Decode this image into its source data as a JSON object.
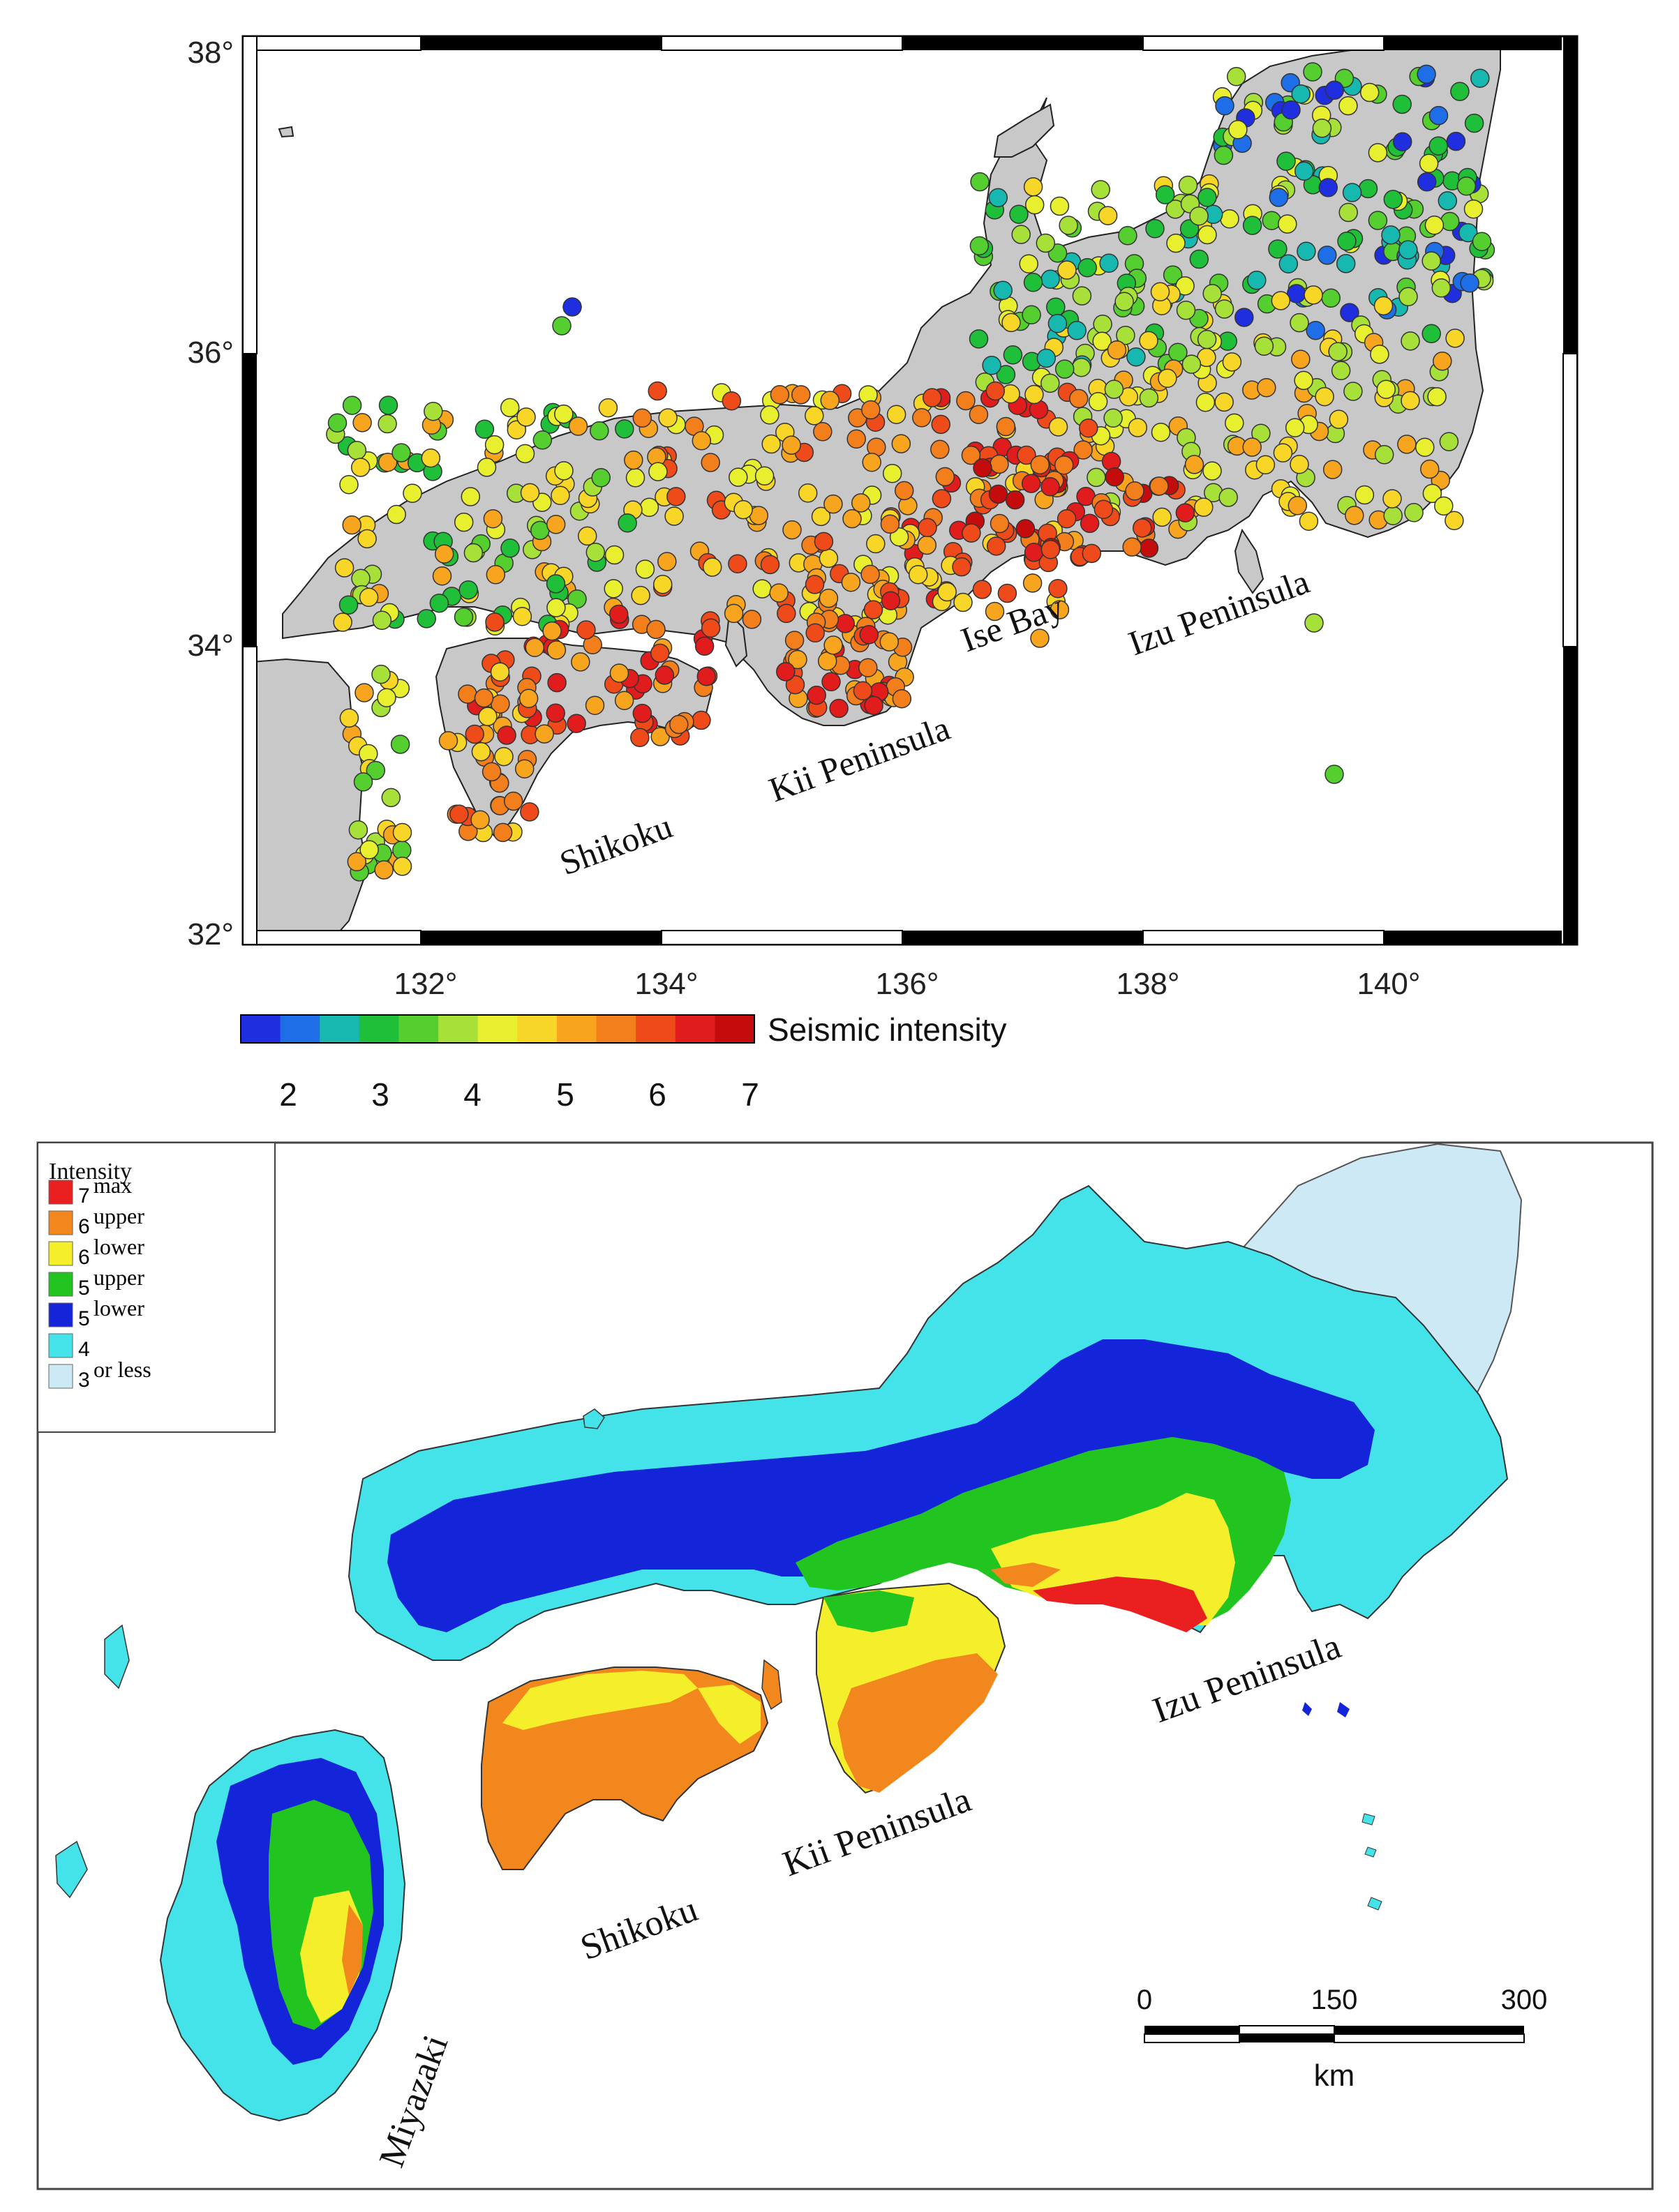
{
  "top_map": {
    "lat_ticks": [
      "38°",
      "36°",
      "34°",
      "32°"
    ],
    "lon_ticks": [
      "132°",
      "134°",
      "136°",
      "138°",
      "140°"
    ],
    "labels": {
      "ise_bay": "Ise Bay",
      "izu": "Izu Peninsula",
      "kii": "Kii Peninsula",
      "shikoku": "Shikoku"
    },
    "colorbar": {
      "title": "Seismic intensity",
      "ticks": [
        "2",
        "3",
        "4",
        "5",
        "6",
        "7"
      ],
      "colors": [
        "#1f2fe0",
        "#1e6ee8",
        "#17b8b0",
        "#1fbf3a",
        "#54cf2f",
        "#a8e03a",
        "#e8ef2e",
        "#f8d628",
        "#f7a51e",
        "#f27e1c",
        "#ee4a1a",
        "#e11c1c",
        "#c40c0c"
      ]
    },
    "stations_summary": "seismic intensity observation stations, colored by intensity (approx. 2 to 7)"
  },
  "bottom_map": {
    "legend": {
      "title": "Intensity",
      "rows": [
        {
          "num": "7",
          "text": "max",
          "color": "#ea1f1f"
        },
        {
          "num": "6",
          "text": "upper",
          "color": "#f2871e"
        },
        {
          "num": "6",
          "text": "lower",
          "color": "#f4ef2a"
        },
        {
          "num": "5",
          "text": "upper",
          "color": "#22c51f"
        },
        {
          "num": "5",
          "text": "lower",
          "color": "#1424d8"
        },
        {
          "num": "4",
          "text": "",
          "color": "#43e3e9"
        },
        {
          "num": "3",
          "text": "or less",
          "color": "#cde9f5"
        }
      ]
    },
    "labels": {
      "izu": "Izu Peninsula",
      "kii": "Kii Peninsula",
      "shikoku": "Shikoku",
      "miyazaki": "Miyazaki"
    },
    "scalebar": {
      "ticks": [
        "0",
        "150",
        "300"
      ],
      "unit": "km"
    }
  }
}
